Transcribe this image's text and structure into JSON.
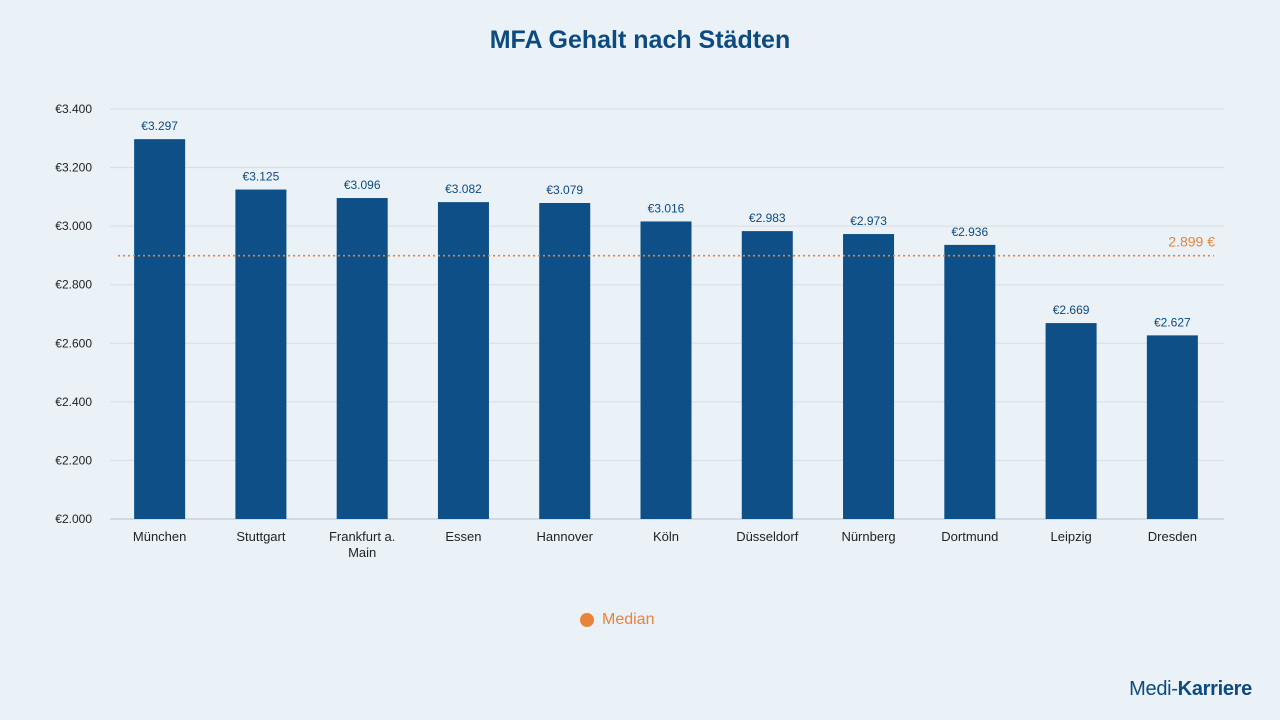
{
  "chart_data": {
    "type": "bar",
    "title": "MFA Gehalt nach Städten",
    "categories": [
      "München",
      "Stuttgart",
      "Frankfurt a. Main",
      "Essen",
      "Hannover",
      "Köln",
      "Düsseldorf",
      "Nürnberg",
      "Dortmund",
      "Leipzig",
      "Dresden"
    ],
    "values": [
      3297,
      3125,
      3096,
      3082,
      3079,
      3016,
      2983,
      2973,
      2936,
      2669,
      2627
    ],
    "data_labels": [
      "€3.297",
      "€3.125",
      "€3.096",
      "€3.082",
      "€3.079",
      "€3.016",
      "€2.983",
      "€2.973",
      "€2.936",
      "€2.669",
      "€2.627"
    ],
    "ylim": [
      2000,
      3400
    ],
    "yticks": [
      2000,
      2200,
      2400,
      2600,
      2800,
      3000,
      3200,
      3400
    ],
    "ytick_labels": [
      "€2.000",
      "€2.200",
      "€2.400",
      "€2.600",
      "€2.800",
      "€3.000",
      "€3.200",
      "€3.400"
    ],
    "grid": true,
    "bar_color": "#0d4f86",
    "median": {
      "name": "Median",
      "value": 2899,
      "label": "2.899 €",
      "color": "#e8833a"
    },
    "legend": {
      "placement": "bottom-center",
      "entries": [
        "Median"
      ]
    }
  },
  "branding": {
    "logo_part1": "Medi-",
    "logo_part2": "Karriere"
  }
}
